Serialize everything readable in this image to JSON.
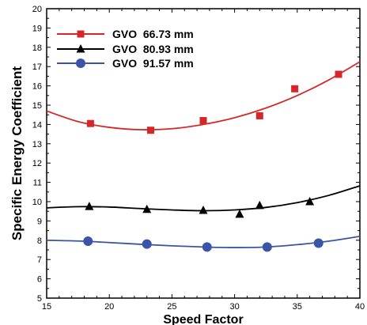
{
  "chart_data": {
    "type": "scatter",
    "title": "",
    "xlabel": "Speed Factor",
    "ylabel": "Specific Energy Coefficient",
    "xlim": [
      15,
      40
    ],
    "ylim": [
      5,
      20
    ],
    "x_ticks": [
      "15",
      "20",
      "25",
      "30",
      "35",
      "40"
    ],
    "y_ticks": [
      "5",
      "6",
      "7",
      "8",
      "9",
      "10",
      "11",
      "12",
      "13",
      "14",
      "15",
      "16",
      "17",
      "18",
      "19",
      "20"
    ],
    "grid": false,
    "legend_position": "top-left",
    "series": [
      {
        "name": "GVO  66.73 mm",
        "color": "#d62728",
        "marker": "square",
        "points": [
          [
            18.5,
            14.05
          ],
          [
            23.3,
            13.7
          ],
          [
            27.5,
            14.2
          ],
          [
            32.0,
            14.45
          ],
          [
            34.8,
            15.85
          ],
          [
            38.3,
            16.6
          ]
        ],
        "fit_curve": [
          [
            15,
            14.7
          ],
          [
            17.5,
            14.15
          ],
          [
            20,
            13.85
          ],
          [
            22.5,
            13.73
          ],
          [
            25,
            13.78
          ],
          [
            27.5,
            14.0
          ],
          [
            30,
            14.35
          ],
          [
            32.5,
            14.85
          ],
          [
            35,
            15.5
          ],
          [
            37.5,
            16.3
          ],
          [
            40,
            17.25
          ]
        ]
      },
      {
        "name": "GVO  80.93 mm",
        "color": "#000000",
        "marker": "triangle",
        "points": [
          [
            18.4,
            9.75
          ],
          [
            23.0,
            9.6
          ],
          [
            27.5,
            9.55
          ],
          [
            30.4,
            9.35
          ],
          [
            32.0,
            9.8
          ],
          [
            36.0,
            10.0
          ]
        ],
        "fit_curve": [
          [
            15,
            9.68
          ],
          [
            17.5,
            9.74
          ],
          [
            20,
            9.72
          ],
          [
            22.5,
            9.64
          ],
          [
            25,
            9.57
          ],
          [
            27.5,
            9.53
          ],
          [
            30,
            9.57
          ],
          [
            32.5,
            9.7
          ],
          [
            35,
            9.95
          ],
          [
            37.5,
            10.32
          ],
          [
            40,
            10.82
          ]
        ]
      },
      {
        "name": "GVO  91.57 mm",
        "color": "#3b54a7",
        "marker": "circle",
        "points": [
          [
            18.3,
            7.95
          ],
          [
            23.0,
            7.8
          ],
          [
            27.8,
            7.65
          ],
          [
            32.6,
            7.65
          ],
          [
            36.7,
            7.85
          ]
        ],
        "fit_curve": [
          [
            15,
            8.0
          ],
          [
            17.5,
            7.96
          ],
          [
            20,
            7.88
          ],
          [
            22.5,
            7.79
          ],
          [
            25,
            7.71
          ],
          [
            27.5,
            7.65
          ],
          [
            30,
            7.62
          ],
          [
            32.5,
            7.65
          ],
          [
            35,
            7.77
          ],
          [
            37.5,
            7.95
          ],
          [
            40,
            8.2
          ]
        ]
      }
    ]
  }
}
